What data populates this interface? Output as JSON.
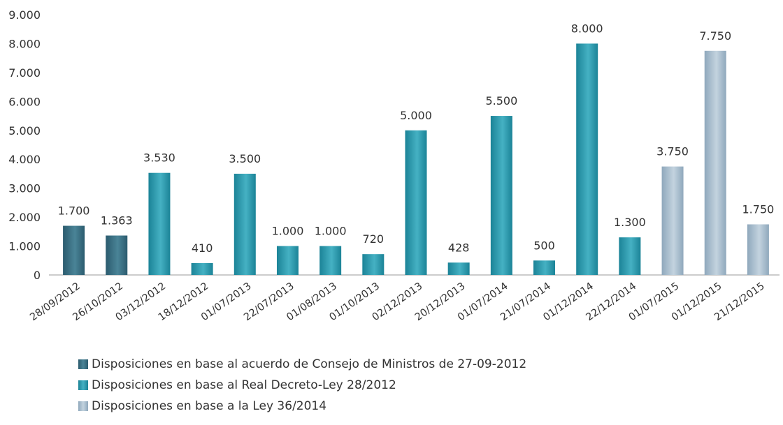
{
  "chart_data": {
    "type": "bar",
    "title": "",
    "xlabel": "",
    "ylabel": "",
    "ylim": [
      0,
      9000
    ],
    "y_ticks": [
      "0",
      "1.000",
      "2.000",
      "3.000",
      "4.000",
      "5.000",
      "6.000",
      "7.000",
      "8.000",
      "9.000"
    ],
    "y_tick_values": [
      0,
      1000,
      2000,
      3000,
      4000,
      5000,
      6000,
      7000,
      8000,
      9000
    ],
    "grid": false,
    "legend_position": "bottom-left",
    "categories": [
      "28/09/2012",
      "26/10/2012",
      "03/12/2012",
      "18/12/2012",
      "01/07/2013",
      "22/07/2013",
      "01/08/2013",
      "01/10/2013",
      "02/12/2013",
      "20/12/2013",
      "01/07/2014",
      "21/07/2014",
      "01/12/2014",
      "22/12/2014",
      "01/07/2015",
      "01/12/2015",
      "21/12/2015"
    ],
    "values": [
      1700,
      1363,
      3530,
      410,
      3500,
      1000,
      1000,
      720,
      5000,
      428,
      5500,
      500,
      8000,
      1300,
      3750,
      7750,
      1750
    ],
    "value_labels": [
      "1.700",
      "1.363",
      "3.530",
      "410",
      "3.500",
      "1.000",
      "1.000",
      "720",
      "5.000",
      "428",
      "5.500",
      "500",
      "8.000",
      "1.300",
      "3.750",
      "7.750",
      "1.750"
    ],
    "bar_series": [
      0,
      0,
      1,
      1,
      1,
      1,
      1,
      1,
      1,
      1,
      1,
      1,
      1,
      1,
      2,
      2,
      2
    ],
    "series": [
      {
        "name": "Disposiciones en base al acuerdo de Consejo de Ministros de 27-09-2012",
        "color": "#2b5b6e",
        "color_light": "#4a8497"
      },
      {
        "name": "Disposiciones en base al Real Decreto-Ley 28/2012",
        "color": "#1b8397",
        "color_light": "#45b1c3"
      },
      {
        "name": "Disposiciones en base a la Ley 36/2014",
        "color": "#8fa8bc",
        "color_light": "#c3d3df"
      }
    ]
  }
}
